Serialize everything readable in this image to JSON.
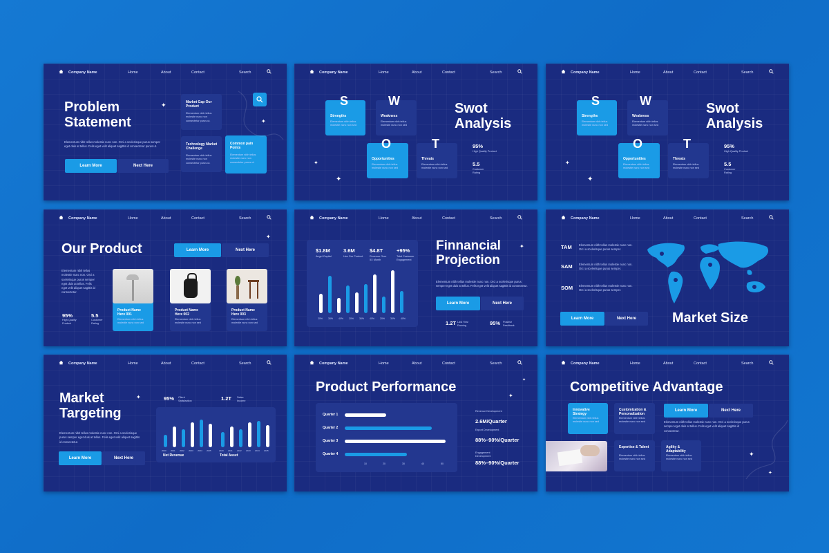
{
  "nav": {
    "brand": "Company Name",
    "home": "Home",
    "about": "About",
    "contact": "Contact",
    "search": "Search"
  },
  "s1": {
    "title": "Problem Statement",
    "desc": "Elementum nibh tellus molestie nunc non. Orci a scelerisque purus semper eget duis at tellus. Felis eget velit aliquet sagittis id consectetur purus ut.",
    "learn": "Learn More",
    "next": "Next Here",
    "cards": [
      {
        "t": "Market Gap Our Product",
        "d": "Elementum nibh tellus molestie nunc non consectetur purus ut."
      },
      {
        "t": "Technology Market Challenge",
        "d": "Elementum nibh tellus molestie nunc non consectetur purus ut."
      },
      {
        "t": "Common pain Points",
        "d": "Elementum nibh tellus molestie nunc non consectetur purus ut."
      }
    ]
  },
  "swot": {
    "title": "Swot Analysis",
    "letters": [
      "S",
      "W",
      "O",
      "T"
    ],
    "cards": [
      {
        "t": "Strengths",
        "d": "Elementum nibh tellus molestie nunc non sed"
      },
      {
        "t": "Weakness",
        "d": "Elementum nibh tellus molestie nunc non sed"
      },
      {
        "t": "Opportunities",
        "d": "Elementum nibh tellus molestie nunc non sed"
      },
      {
        "t": "Threats",
        "d": "Elementum nibh tellus molestie nunc non sed"
      }
    ],
    "stats": [
      {
        "v": "95%",
        "l": "High Quality Product"
      },
      {
        "v": "5.5",
        "l": "Customer Rating"
      }
    ]
  },
  "s4": {
    "title": "Our Product",
    "learn": "Learn More",
    "next": "Next Here",
    "desc": "Elementum nibh tellus molestie nunc non. Orci a scelerisque purus semper eget duis at tellus. Felis eget velit aliquet sagittis id consectetur.",
    "stats": [
      {
        "v": "95%",
        "l": "High Quality Product"
      },
      {
        "v": "5.5",
        "l": "Customer Rating"
      }
    ],
    "products": [
      {
        "t": "Product Name Here 001",
        "d": "Elementum nibh tellus molestie nunc non sed"
      },
      {
        "t": "Product Name Here 002",
        "d": "Elementum nibh tellus molestie nunc non sed"
      },
      {
        "t": "Product Name Here 003",
        "d": "Elementum nibh tellus molestie nunc non sed"
      }
    ]
  },
  "s5": {
    "title": "Finnancial Projection",
    "desc": "Elementum nibh tellus molestie nunc non. Orci a scelerisque purus semper eget duis at tellus. Felis eget velit aliquet sagittis id consectetur.",
    "learn": "Learn More",
    "next": "Next Here",
    "kpis": [
      {
        "v": "$1.8M",
        "l": "Angel Capital"
      },
      {
        "v": "3.6M",
        "l": "Use Our Product"
      },
      {
        "v": "$4.8T",
        "l": "Revenue Over 5X Month"
      },
      {
        "v": "+95%",
        "l": "Total Customer Engagement"
      }
    ],
    "bottom": [
      {
        "v": "1.2T",
        "l": "Last Year Earning"
      },
      {
        "v": "95%",
        "l": "Positive Feedback"
      }
    ],
    "ticks": [
      "20%",
      "30%",
      "40%",
      "20%",
      "30%",
      "40%",
      "20%",
      "30%",
      "40%"
    ]
  },
  "s6": {
    "title": "Market Size",
    "learn": "Learn More",
    "next": "Next Here",
    "rows": [
      {
        "k": "TAM",
        "d": "Elementum nibh tellus molestie nunc non. Orci a scelerisque purus semper."
      },
      {
        "k": "SAM",
        "d": "Elementum nibh tellus molestie nunc non. Orci a scelerisque purus semper."
      },
      {
        "k": "SOM",
        "d": "Elementum nibh tellus molestie nunc non. Orci a scelerisque purus semper."
      }
    ]
  },
  "s7": {
    "title": "Market Targeting",
    "learn": "Learn More",
    "next": "Next Here",
    "desc": "Elementum nibh tellus molestie nunc non. Orci a scelerisque purus semper eget duis at tellus. Felis eget velit aliquet sagittis id consectetur.",
    "stats": [
      {
        "v": "95%",
        "l": "Client Satisfaction"
      },
      {
        "v": "1.2T",
        "l": "Sales Income"
      }
    ],
    "chart_labels": [
      "Net Revenue",
      "Total Asset"
    ],
    "years": [
      "2020",
      "2021",
      "2022",
      "2023",
      "2024",
      "2025",
      "2020",
      "2021",
      "2022",
      "2023",
      "2024",
      "2025"
    ]
  },
  "s8": {
    "title": "Product Performance",
    "quarters": [
      "Quarter 1",
      "Quarter 2",
      "Quarter 3",
      "Quarter 4"
    ],
    "axis": [
      "10",
      "20",
      "30",
      "40",
      "50"
    ],
    "metrics": [
      {
        "l": "Revenue Development",
        "v": "2.6M/Quarter"
      },
      {
        "l": "Export Development",
        "v": "88%–90%/Quarter"
      },
      {
        "l": "Engagement Development",
        "v": "88%–90%/Quarter"
      }
    ]
  },
  "s9": {
    "title": "Competitive Advantage",
    "learn": "Learn More",
    "next": "Next Here",
    "desc": "Elementum nibh tellus molestie nunc non. Orci a scelerisque purus semper eget duis at tellus. Felis eget velit aliquet sagittis id consectetur.",
    "cards": [
      {
        "t": "Innovative Strategy",
        "d": "Elementum nibh tellus molestie nunc non sed"
      },
      {
        "t": "Customization & Personalization",
        "d": "Elementum nibh tellus molestie nunc non sed"
      },
      {
        "t": "Expertise & Talent",
        "d": "Elementum nibh tellus molestie nunc non sed"
      },
      {
        "t": "Agility & Adaptability",
        "d": "Elementum nibh tellus molestie nunc non sed"
      }
    ]
  },
  "colors": {
    "slide": "#1a2b80",
    "card": "#22378f",
    "accent": "#1a9be6",
    "bg": "#1579d3"
  }
}
